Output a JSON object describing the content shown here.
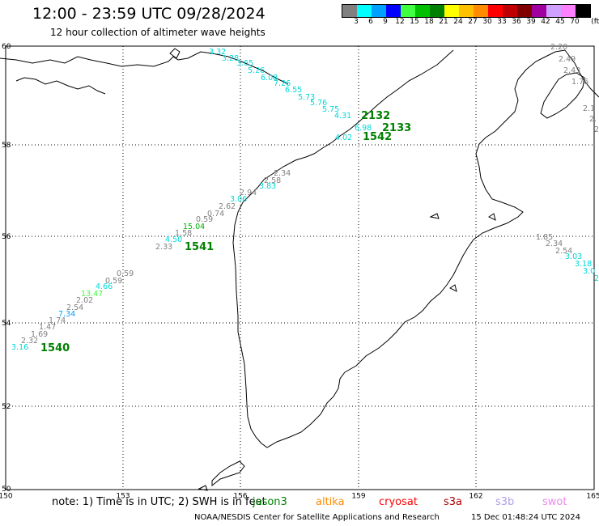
{
  "header": {
    "title": "12:00 - 23:59 UTC 09/28/2024",
    "subtitle": "12 hour collection of altimeter wave heights"
  },
  "legend": {
    "unit": "(ft)",
    "bins": [
      {
        "label": "3",
        "color": "#808080"
      },
      {
        "label": "6",
        "color": "#00ffff"
      },
      {
        "label": "9",
        "color": "#00a0ff"
      },
      {
        "label": "12",
        "color": "#0000ff"
      },
      {
        "label": "15",
        "color": "#40ff40"
      },
      {
        "label": "18",
        "color": "#00c000"
      },
      {
        "label": "21",
        "color": "#008000"
      },
      {
        "label": "24",
        "color": "#ffff00"
      },
      {
        "label": "27",
        "color": "#ffc000"
      },
      {
        "label": "30",
        "color": "#ff8c00"
      },
      {
        "label": "33",
        "color": "#ff0000"
      },
      {
        "label": "36",
        "color": "#c00000"
      },
      {
        "label": "39",
        "color": "#800000"
      },
      {
        "label": "42",
        "color": "#a000a0"
      },
      {
        "label": "45",
        "color": "#d0a0ff"
      },
      {
        "label": "70",
        "color": "#ff80ff"
      },
      {
        "label": "",
        "color": "#000000"
      }
    ]
  },
  "map": {
    "lon_ticks": [
      "150",
      "153",
      "156",
      "159",
      "162",
      "165"
    ],
    "lat_ticks": [
      "60",
      "58",
      "56",
      "54",
      "52",
      "50"
    ]
  },
  "tracks": [
    {
      "id": "2132",
      "readings": [
        {
          "v": "3.32",
          "c": "#00d8d8"
        },
        {
          "v": "3.28",
          "c": "#00d8d8"
        },
        {
          "v": "3.65",
          "c": "#00d8d8"
        },
        {
          "v": "5.26",
          "c": "#00d8d8"
        },
        {
          "v": "6.08",
          "c": "#00d8d8"
        },
        {
          "v": "7.26",
          "c": "#00d8d8"
        },
        {
          "v": "6.55",
          "c": "#00d8d8"
        },
        {
          "v": "5.73",
          "c": "#00d8d8"
        },
        {
          "v": "5.76",
          "c": "#00d8d8"
        },
        {
          "v": "5.75",
          "c": "#00d8d8"
        },
        {
          "v": "4.31",
          "c": "#00d8d8"
        }
      ]
    },
    {
      "id": "2133",
      "readings": [
        {
          "v": "6.98",
          "c": "#00d8d8"
        }
      ]
    },
    {
      "id": "1542",
      "readings": [
        {
          "v": "4.02",
          "c": "#00d8d8"
        }
      ]
    },
    {
      "id": "1541",
      "readings": [
        {
          "v": "2.34",
          "c": "#808080"
        },
        {
          "v": "2.58",
          "c": "#808080"
        },
        {
          "v": "3.83",
          "c": "#00d8d8"
        },
        {
          "v": "2.94",
          "c": "#808080"
        },
        {
          "v": "3.06",
          "c": "#00d8d8"
        },
        {
          "v": "2.62",
          "c": "#808080"
        },
        {
          "v": "0.74",
          "c": "#808080"
        },
        {
          "v": "0.59",
          "c": "#808080"
        },
        {
          "v": "15.04",
          "c": "#00b000"
        },
        {
          "v": "1.58",
          "c": "#808080"
        },
        {
          "v": "4.50",
          "c": "#00d8d8"
        },
        {
          "v": "2.33",
          "c": "#808080"
        }
      ]
    },
    {
      "id": "1540",
      "readings": [
        {
          "v": "0.59",
          "c": "#808080"
        },
        {
          "v": "4.66",
          "c": "#00d8d8"
        },
        {
          "v": "0.59",
          "c": "#808080"
        },
        {
          "v": "13.47",
          "c": "#40ff40"
        },
        {
          "v": "2.02",
          "c": "#808080"
        },
        {
          "v": "2.54",
          "c": "#808080"
        },
        {
          "v": "7.34",
          "c": "#00a0ff"
        },
        {
          "v": "1.74",
          "c": "#808080"
        },
        {
          "v": "1.47",
          "c": "#808080"
        },
        {
          "v": "1.69",
          "c": "#808080"
        },
        {
          "v": "2.32",
          "c": "#808080"
        },
        {
          "v": "3.16",
          "c": "#00d8d8"
        }
      ]
    },
    {
      "id": "",
      "readings": [
        {
          "v": "2.20",
          "c": "#808080"
        },
        {
          "v": "2.49",
          "c": "#808080"
        },
        {
          "v": "2.43",
          "c": "#808080"
        },
        {
          "v": "1.76",
          "c": "#808080"
        },
        {
          "v": "2.1",
          "c": "#808080"
        },
        {
          "v": "2.",
          "c": "#808080"
        },
        {
          "v": "2",
          "c": "#808080"
        }
      ]
    },
    {
      "id": "",
      "readings": [
        {
          "v": "1.85",
          "c": "#808080"
        },
        {
          "v": "2.34",
          "c": "#808080"
        },
        {
          "v": "2.54",
          "c": "#808080"
        },
        {
          "v": "3.03",
          "c": "#00d8d8"
        },
        {
          "v": "3.18",
          "c": "#00d8d8"
        },
        {
          "v": "3.0",
          "c": "#00d8d8"
        },
        {
          "v": "2",
          "c": "#00d8d8"
        }
      ]
    }
  ],
  "footer": {
    "note": "note: 1) Time is in UTC; 2) SWH is in feet",
    "satellites": [
      {
        "name": "jason3"
      },
      {
        "name": "altika"
      },
      {
        "name": "cryosat"
      },
      {
        "name": "s3a"
      },
      {
        "name": "s3b"
      },
      {
        "name": "swot"
      }
    ],
    "credit": "NOAA/NESDIS Center for Satellite Applications and Research",
    "generated": "15 Dec 01:48:24 UTC 2024"
  }
}
